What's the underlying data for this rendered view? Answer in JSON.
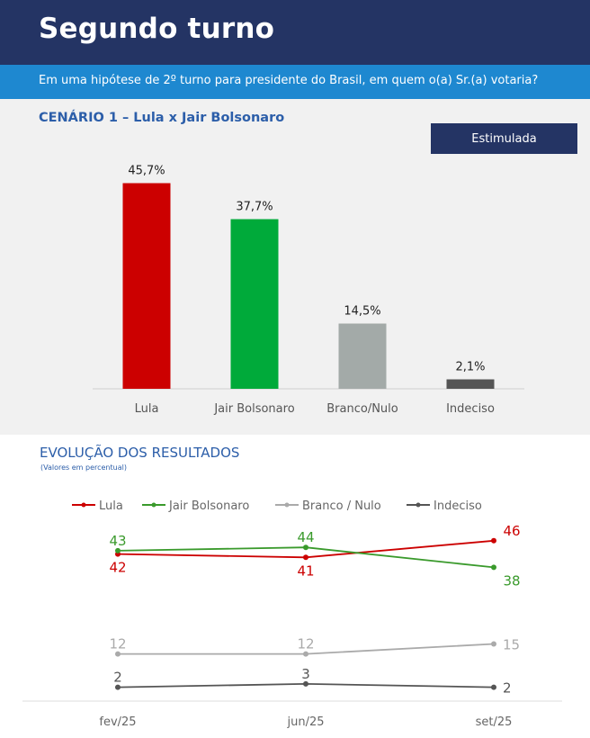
{
  "header": {
    "title": "Segundo turno"
  },
  "subheader": {
    "question": "Em uma hipótese de 2º turno para presidente do Brasil, em quem o(a) Sr.(a) votaria?"
  },
  "scenario": {
    "title": "CENÁRIO 1 – Lula x Jair Bolsonaro",
    "badge": "Estimulada"
  },
  "evolution": {
    "title": "EVOLUÇÃO DOS RESULTADOS",
    "subtitle": "(Valores em percentual)"
  },
  "chart_data": [
    {
      "type": "bar",
      "categories": [
        "Lula",
        "Jair Bolsonaro",
        "Branco/Nulo",
        "Indeciso"
      ],
      "values": [
        45.7,
        37.7,
        14.5,
        2.1
      ],
      "value_labels": [
        "45,7%",
        "37,7%",
        "14,5%",
        "2,1%"
      ],
      "colors": [
        "#cc0000",
        "#00aa3a",
        "#a3aaa8",
        "#555555"
      ],
      "ylim": [
        0,
        50
      ],
      "grid": false,
      "legend": "none"
    },
    {
      "type": "line",
      "x": [
        "fev/25",
        "jun/25",
        "set/25"
      ],
      "series": [
        {
          "name": "Lula",
          "values": [
            42,
            41,
            46
          ],
          "color": "#cc0000",
          "label_pos": [
            "below",
            "below",
            "above"
          ]
        },
        {
          "name": "Jair Bolsonaro",
          "values": [
            43,
            44,
            38
          ],
          "color": "#3a9a2c",
          "label_pos": [
            "above",
            "above",
            "below"
          ]
        },
        {
          "name": "Branco / Nulo",
          "values": [
            12,
            12,
            15
          ],
          "color": "#aaaaaa",
          "label_pos": [
            "above",
            "above",
            "right"
          ]
        },
        {
          "name": "Indeciso",
          "values": [
            2,
            3,
            2
          ],
          "color": "#555555",
          "label_pos": [
            "above",
            "above",
            "right"
          ]
        }
      ],
      "legend": "top"
    }
  ]
}
